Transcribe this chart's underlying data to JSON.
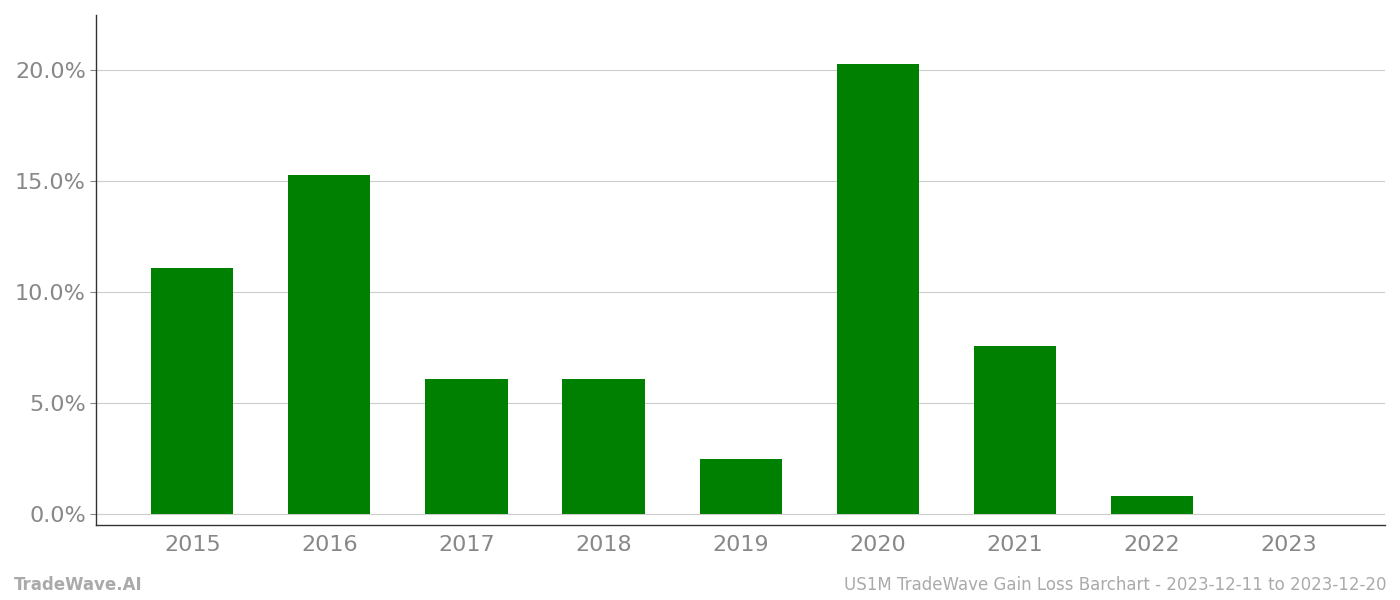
{
  "years": [
    "2015",
    "2016",
    "2017",
    "2018",
    "2019",
    "2020",
    "2021",
    "2022",
    "2023"
  ],
  "values": [
    0.111,
    0.153,
    0.061,
    0.061,
    0.025,
    0.203,
    0.076,
    0.008,
    0.0
  ],
  "bar_color": "#008000",
  "background_color": "#ffffff",
  "grid_color": "#cccccc",
  "yticks": [
    0.0,
    0.05,
    0.1,
    0.15,
    0.2
  ],
  "ylim": [
    -0.005,
    0.225
  ],
  "footer_left": "TradeWave.AI",
  "footer_right": "US1M TradeWave Gain Loss Barchart - 2023-12-11 to 2023-12-20",
  "footer_color": "#aaaaaa",
  "footer_fontsize": 12,
  "tick_fontsize": 16,
  "bar_width": 0.6,
  "spine_color": "#333333",
  "tick_color": "#888888"
}
